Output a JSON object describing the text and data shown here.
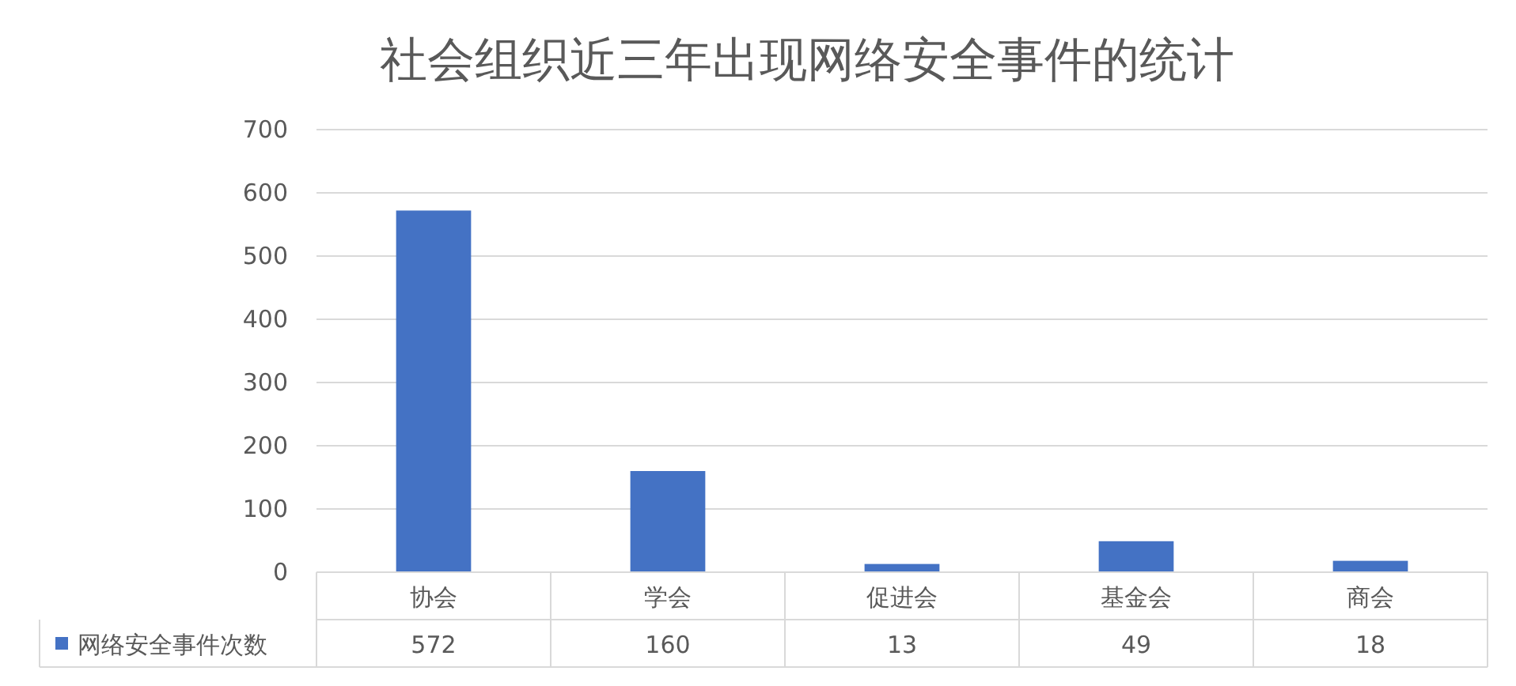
{
  "chart_data": {
    "type": "bar",
    "title": "社会组织近三年出现网络安全事件的统计",
    "categories": [
      "协会",
      "学会",
      "促进会",
      "基金会",
      "商会"
    ],
    "series": [
      {
        "name": "网络安全事件次数",
        "color": "#4472c4",
        "values": [
          572,
          160,
          13,
          49,
          18
        ]
      }
    ],
    "ylim": [
      0,
      700
    ],
    "yticks": [
      0,
      100,
      200,
      300,
      400,
      500,
      600,
      700
    ],
    "grid": "y",
    "data_labels": true,
    "legend": "bottom"
  }
}
